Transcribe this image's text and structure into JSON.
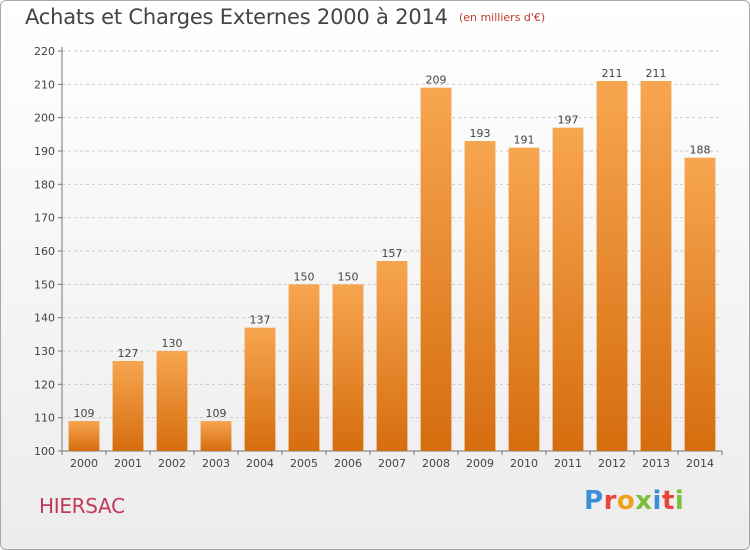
{
  "chart_data": {
    "type": "bar",
    "title": "Achats et Charges Externes 2000 à 2014",
    "subtitle": "(en milliers d'€)",
    "categories": [
      "2000",
      "2001",
      "2002",
      "2003",
      "2004",
      "2005",
      "2006",
      "2007",
      "2008",
      "2009",
      "2010",
      "2011",
      "2012",
      "2013",
      "2014"
    ],
    "values": [
      109,
      127,
      130,
      109,
      137,
      150,
      150,
      157,
      209,
      193,
      191,
      197,
      211,
      211,
      188
    ],
    "ylim": [
      100,
      220
    ],
    "yticks": [
      100,
      110,
      120,
      130,
      140,
      150,
      160,
      170,
      180,
      190,
      200,
      210,
      220
    ],
    "grid": true,
    "bar_color_top": "#f7a650",
    "bar_color_bottom": "#d66d0f"
  },
  "footer": {
    "location": "HIERSAC",
    "brand": "Proxiti",
    "brand_colors": [
      "#3b8fd6",
      "#e8463a",
      "#f0a21b",
      "#7cbf3a",
      "#3b8fd6",
      "#e8463a",
      "#7cbf3a"
    ]
  }
}
